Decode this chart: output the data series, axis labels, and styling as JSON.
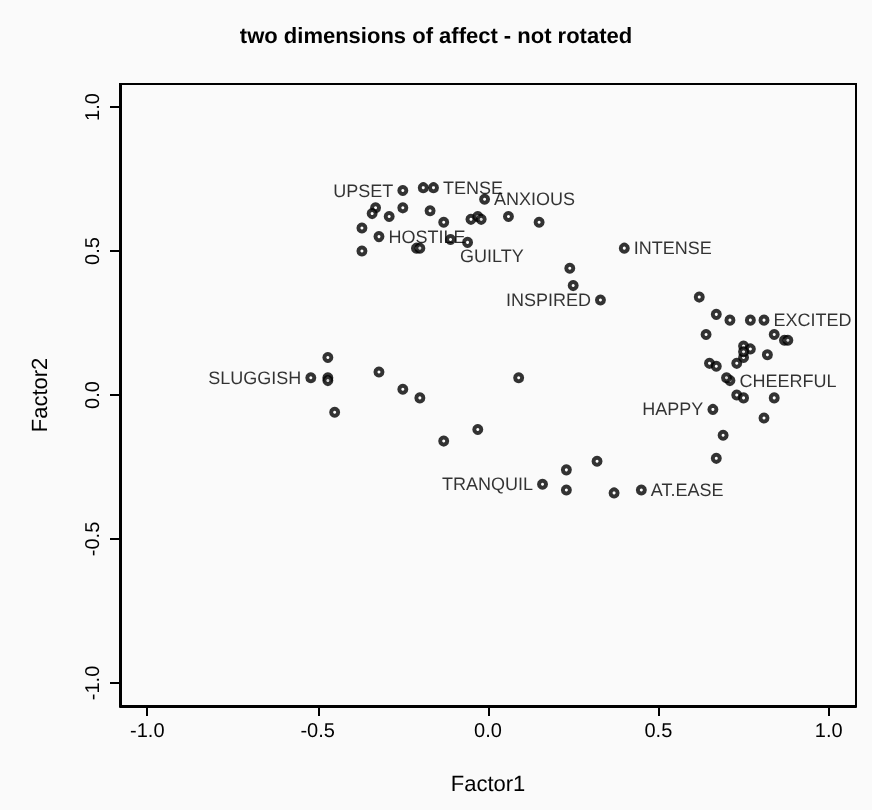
{
  "chart_data": {
    "type": "scatter",
    "title": "two dimensions of affect - not rotated",
    "xlabel": "Factor1",
    "ylabel": "Factor2",
    "xlim": [
      -1.08,
      1.08
    ],
    "ylim": [
      -1.08,
      1.08
    ],
    "xticks": [
      {
        "value": -1,
        "label": "-1.0"
      },
      {
        "value": -0.5,
        "label": "-0.5"
      },
      {
        "value": 0,
        "label": "0.0"
      },
      {
        "value": 0.5,
        "label": "0.5"
      },
      {
        "value": 1,
        "label": "1.0"
      }
    ],
    "yticks": [
      {
        "value": -1,
        "label": "-1.0"
      },
      {
        "value": -0.5,
        "label": "-0.5"
      },
      {
        "value": 0,
        "label": "0.0"
      },
      {
        "value": 0.5,
        "label": "0.5"
      },
      {
        "value": 1,
        "label": "1.0"
      }
    ],
    "grid": false,
    "marker": "circle",
    "series": [
      {
        "color": "#000000",
        "x": [
          -0.25,
          -0.16,
          -0.01,
          -0.32,
          -0.11,
          0.4,
          0.33,
          0.81,
          0.71,
          0.66,
          0.45,
          0.16,
          -0.52,
          -0.19,
          -0.33,
          -0.34,
          -0.29,
          -0.25,
          -0.17,
          -0.13,
          -0.05,
          -0.03,
          -0.02,
          0.06,
          0.15,
          -0.37,
          -0.37,
          -0.21,
          -0.2,
          -0.06,
          0.24,
          0.25,
          0.62,
          0.67,
          0.71,
          0.77,
          0.64,
          0.84,
          0.87,
          0.88,
          0.82,
          0.75,
          0.77,
          0.75,
          0.73,
          0.75,
          0.65,
          0.67,
          0.7,
          0.73,
          0.75,
          0.84,
          0.81,
          0.69,
          0.67,
          0.32,
          0.37,
          -0.47,
          -0.47,
          -0.47,
          -0.45,
          -0.32,
          -0.25,
          -0.2,
          0.09,
          -0.03,
          -0.13,
          0.23,
          0.23
        ],
        "values": [
          0.71,
          0.72,
          0.68,
          0.55,
          0.54,
          0.51,
          0.33,
          0.26,
          0.05,
          -0.05,
          -0.33,
          -0.31,
          0.06,
          0.72,
          0.65,
          0.63,
          0.62,
          0.65,
          0.64,
          0.6,
          0.61,
          0.62,
          0.61,
          0.62,
          0.6,
          0.58,
          0.5,
          0.51,
          0.51,
          0.53,
          0.44,
          0.38,
          0.34,
          0.28,
          0.26,
          0.26,
          0.21,
          0.21,
          0.19,
          0.19,
          0.14,
          0.17,
          0.16,
          0.13,
          0.11,
          0.15,
          0.11,
          0.1,
          0.06,
          0.0,
          -0.01,
          -0.01,
          -0.08,
          -0.14,
          -0.22,
          -0.23,
          -0.34,
          0.13,
          0.06,
          0.05,
          -0.06,
          0.08,
          0.02,
          -0.01,
          0.06,
          -0.12,
          -0.16,
          -0.26,
          -0.33
        ],
        "value_labels": [
          "UPSET",
          "TENSE",
          "ANXIOUS",
          "HOSTILE",
          "GUILTY",
          "INTENSE",
          "INSPIRED",
          "EXCITED",
          "CHEERFUL",
          "HAPPY",
          "AT.EASE",
          "TRANQUIL",
          "SLUGGISH",
          null,
          null,
          null,
          null,
          null,
          null,
          null,
          null,
          null,
          null,
          null,
          null,
          null,
          null,
          null,
          null,
          null,
          null,
          null,
          null,
          null,
          null,
          null,
          null,
          null,
          null,
          null,
          null,
          null,
          null,
          null,
          null,
          null,
          null,
          null,
          null,
          null,
          null,
          null,
          null,
          null,
          null,
          null,
          null,
          null,
          null,
          null,
          null,
          null,
          null,
          null,
          null,
          null,
          null,
          null,
          null
        ]
      }
    ]
  }
}
